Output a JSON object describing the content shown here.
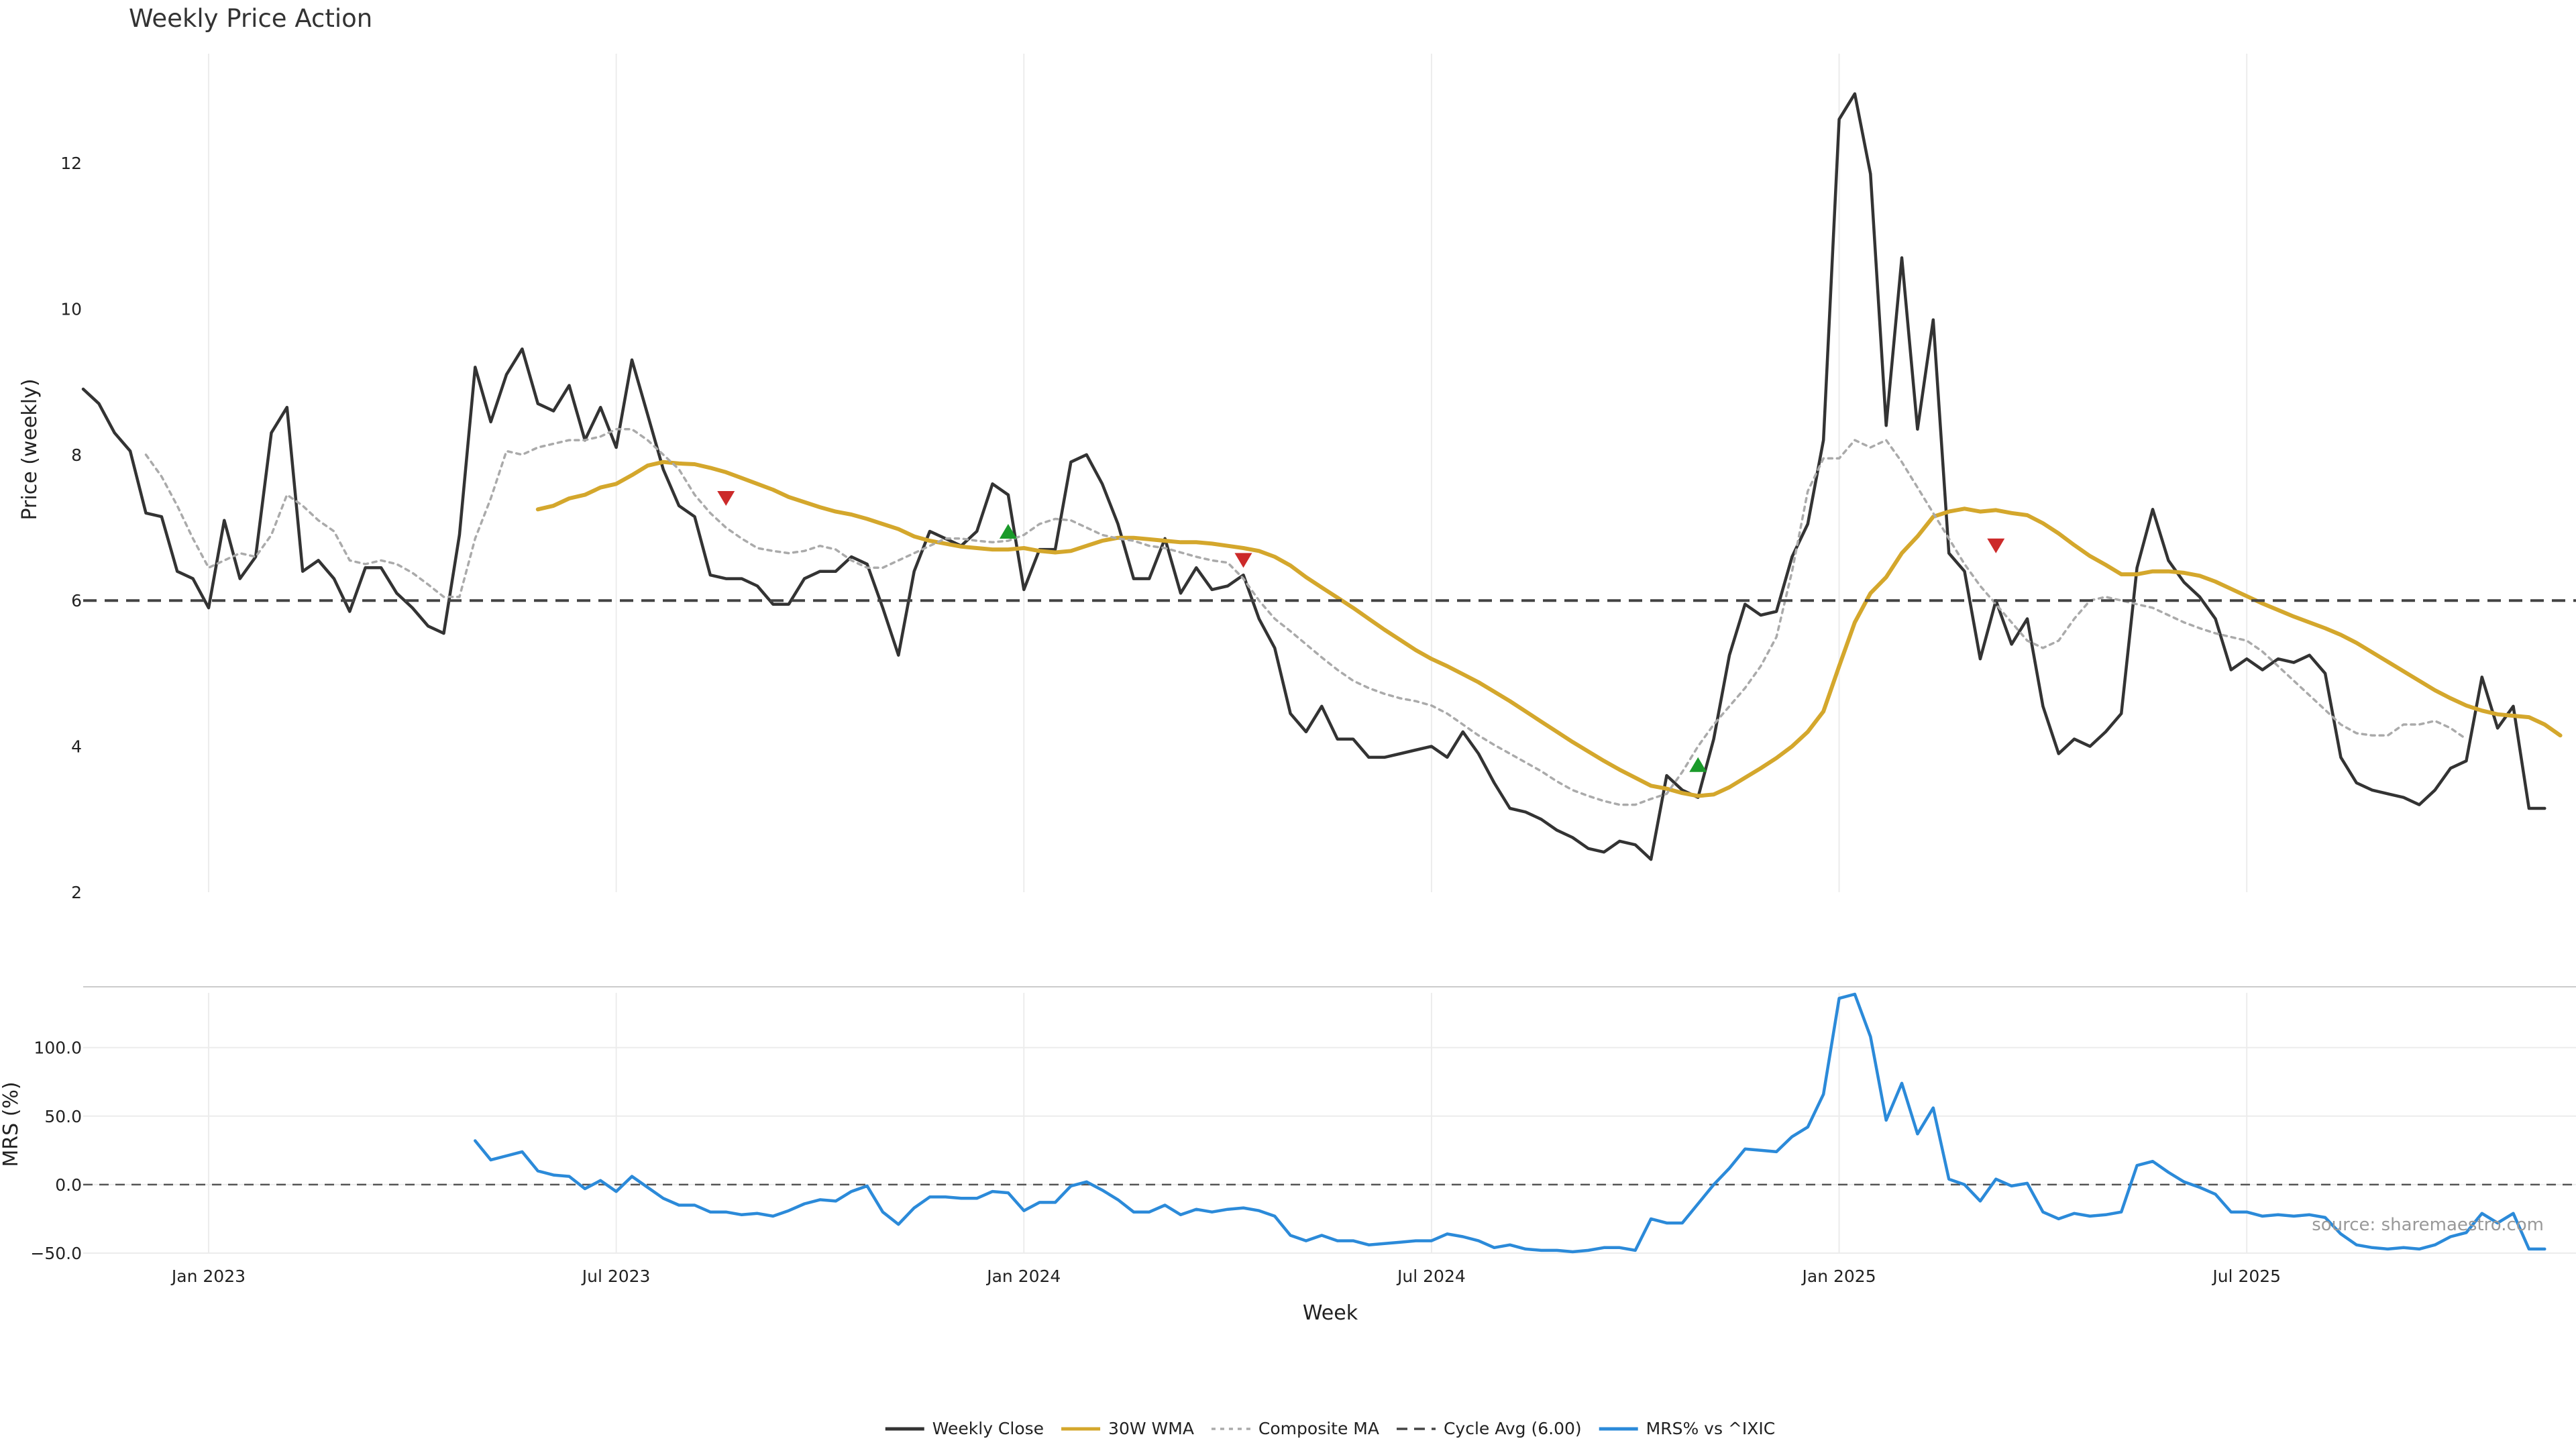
{
  "chart_data": {
    "type": "line",
    "title": "Weekly Price Action",
    "xlabel": "Week",
    "source": "source: sharemaestro.com",
    "x_ticks": [
      "Jan 2023",
      "Jul 2023",
      "Jan 2024",
      "Jul 2024",
      "Jan 2025",
      "Jul 2025"
    ],
    "x_tick_weeks": [
      7,
      33,
      59,
      85,
      111,
      137
    ],
    "x_range": [
      -1,
      158
    ],
    "grid": true,
    "legend_position": "bottom-center",
    "price_panel": {
      "ylabel": "Price (weekly)",
      "ylim": [
        2,
        13.5
      ],
      "yticks": [
        2,
        4,
        6,
        8,
        10,
        12
      ]
    },
    "mrs_panel": {
      "ylabel": "MRS (%)",
      "ylim": [
        -50,
        140
      ],
      "yticks": [
        -50,
        0,
        50,
        100
      ],
      "ytick_labels": [
        "−50.0",
        "0.0",
        "50.0",
        "100.0"
      ]
    },
    "series": [
      {
        "name": "Weekly Close",
        "panel": "price",
        "color": "#333333",
        "style": "solid",
        "start": -1,
        "values": [
          8.9,
          8.7,
          8.3,
          8.05,
          7.2,
          7.15,
          6.4,
          6.3,
          5.9,
          7.1,
          6.3,
          6.6,
          8.3,
          8.65,
          6.4,
          6.55,
          6.3,
          5.85,
          6.45,
          6.45,
          6.1,
          5.9,
          5.65,
          5.55,
          6.9,
          9.2,
          8.45,
          9.1,
          9.45,
          8.7,
          8.6,
          8.95,
          8.2,
          8.65,
          8.1,
          9.3,
          8.55,
          7.8,
          7.3,
          7.15,
          6.35,
          6.3,
          6.3,
          6.2,
          5.95,
          5.95,
          6.3,
          6.4,
          6.4,
          6.6,
          6.5,
          5.9,
          5.25,
          6.4,
          6.95,
          6.85,
          6.75,
          6.95,
          7.6,
          7.45,
          6.15,
          6.7,
          6.7,
          7.9,
          8.0,
          7.6,
          7.05,
          6.3,
          6.3,
          6.85,
          6.1,
          6.45,
          6.15,
          6.2,
          6.35,
          5.75,
          5.35,
          4.45,
          4.2,
          4.55,
          4.1,
          4.1,
          3.85,
          3.85,
          3.9,
          3.95,
          4.0,
          3.85,
          4.2,
          3.9,
          3.5,
          3.15,
          3.1,
          3.0,
          2.85,
          2.75,
          2.6,
          2.55,
          2.7,
          2.65,
          2.45,
          3.6,
          3.4,
          3.3,
          4.1,
          5.25,
          5.95,
          5.8,
          5.85,
          6.6,
          7.05,
          8.2,
          12.6,
          12.95,
          11.85,
          8.4,
          10.7,
          8.35,
          9.85,
          6.65,
          6.4,
          5.2,
          6.0,
          5.4,
          5.75,
          4.55,
          3.9,
          4.1,
          4.0,
          4.2,
          4.45,
          6.45,
          7.25,
          6.55,
          6.25,
          6.05,
          5.75,
          5.05,
          5.2,
          5.05,
          5.2,
          5.15,
          5.25,
          5.0,
          3.85,
          3.5,
          3.4,
          3.35,
          3.3,
          3.2,
          3.4,
          3.7,
          3.8,
          4.95,
          4.25,
          4.55,
          3.15,
          3.15
        ]
      },
      {
        "name": "30W WMA",
        "panel": "price",
        "color": "#d4a72c",
        "style": "solid",
        "start": 28,
        "values": [
          7.25,
          7.3,
          7.4,
          7.45,
          7.55,
          7.6,
          7.72,
          7.85,
          7.9,
          7.88,
          7.87,
          7.82,
          7.76,
          7.68,
          7.6,
          7.52,
          7.42,
          7.35,
          7.28,
          7.22,
          7.18,
          7.12,
          7.05,
          6.98,
          6.88,
          6.82,
          6.78,
          6.74,
          6.72,
          6.7,
          6.7,
          6.72,
          6.68,
          6.66,
          6.68,
          6.75,
          6.82,
          6.86,
          6.86,
          6.84,
          6.82,
          6.8,
          6.8,
          6.78,
          6.75,
          6.72,
          6.68,
          6.6,
          6.48,
          6.32,
          6.18,
          6.04,
          5.9,
          5.75,
          5.6,
          5.46,
          5.32,
          5.2,
          5.1,
          4.99,
          4.88,
          4.75,
          4.62,
          4.48,
          4.34,
          4.2,
          4.06,
          3.93,
          3.8,
          3.68,
          3.57,
          3.46,
          3.42,
          3.36,
          3.32,
          3.34,
          3.44,
          3.57,
          3.7,
          3.84,
          4.0,
          4.2,
          4.48,
          5.1,
          5.7,
          6.1,
          6.32,
          6.65,
          6.88,
          7.15,
          7.22,
          7.26,
          7.22,
          7.24,
          7.2,
          7.17,
          7.06,
          6.92,
          6.76,
          6.61,
          6.49,
          6.36,
          6.36,
          6.4,
          6.4,
          6.38,
          6.34,
          6.26,
          6.16,
          6.06,
          5.96,
          5.87,
          5.78,
          5.7,
          5.62,
          5.53,
          5.42,
          5.29,
          5.16,
          5.03,
          4.9,
          4.77,
          4.66,
          4.56,
          4.49,
          4.44,
          4.42,
          4.4,
          4.3,
          4.15
        ]
      },
      {
        "name": "Composite MA",
        "panel": "price",
        "color": "#aaaaaa",
        "style": "dotted",
        "start": 3,
        "values": [
          8.0,
          7.7,
          7.3,
          6.85,
          6.45,
          6.55,
          6.65,
          6.6,
          6.9,
          7.45,
          7.3,
          7.1,
          6.95,
          6.55,
          6.5,
          6.55,
          6.5,
          6.38,
          6.22,
          6.05,
          6.05,
          6.85,
          7.4,
          8.05,
          8.0,
          8.1,
          8.15,
          8.2,
          8.2,
          8.25,
          8.35,
          8.35,
          8.2,
          8.0,
          7.8,
          7.45,
          7.2,
          7.0,
          6.85,
          6.72,
          6.68,
          6.65,
          6.68,
          6.75,
          6.7,
          6.55,
          6.45,
          6.45,
          6.55,
          6.65,
          6.75,
          6.85,
          6.85,
          6.82,
          6.8,
          6.82,
          6.9,
          7.05,
          7.12,
          7.1,
          7.0,
          6.9,
          6.85,
          6.82,
          6.75,
          6.72,
          6.66,
          6.6,
          6.55,
          6.52,
          6.3,
          6.0,
          5.75,
          5.58,
          5.4,
          5.22,
          5.05,
          4.9,
          4.8,
          4.72,
          4.66,
          4.62,
          4.56,
          4.45,
          4.3,
          4.15,
          4.02,
          3.9,
          3.78,
          3.66,
          3.52,
          3.4,
          3.32,
          3.25,
          3.2,
          3.2,
          3.28,
          3.35,
          3.65,
          4.0,
          4.3,
          4.55,
          4.8,
          5.1,
          5.5,
          6.4,
          7.5,
          7.95,
          7.95,
          8.2,
          8.1,
          8.2,
          7.9,
          7.55,
          7.2,
          6.85,
          6.5,
          6.2,
          5.95,
          5.7,
          5.45,
          5.35,
          5.45,
          5.75,
          6.0,
          6.05,
          6.0,
          5.95,
          5.9,
          5.8,
          5.7,
          5.62,
          5.55,
          5.5,
          5.45,
          5.3,
          5.1,
          4.9,
          4.7,
          4.5,
          4.3,
          4.18,
          4.15,
          4.15,
          4.3,
          4.3,
          4.35,
          4.25,
          4.1
        ]
      },
      {
        "name": "Cycle Avg (6.00)",
        "panel": "price",
        "color": "#444444",
        "style": "dashed",
        "values": [
          6.0
        ]
      },
      {
        "name": "MRS% vs ^IXIC",
        "panel": "mrs",
        "color": "#2b8ad9",
        "style": "solid",
        "start": 24,
        "values": [
          32,
          18,
          21,
          24,
          10,
          7,
          6,
          -3,
          3,
          -5,
          6,
          -2,
          -10,
          -15,
          -15,
          -20,
          -20,
          -22,
          -21,
          -23,
          -19,
          -14,
          -11,
          -12,
          -5,
          -1,
          -20,
          -29,
          -17,
          -9,
          -9,
          -10,
          -10,
          -5,
          -6,
          -19,
          -13,
          -13,
          -1,
          2,
          -4,
          -11,
          -20,
          -20,
          -15,
          -22,
          -18,
          -20,
          -18,
          -17,
          -19,
          -23,
          -37,
          -41,
          -37,
          -41,
          -41,
          -44,
          -43,
          -42,
          -41,
          -41,
          -36,
          -38,
          -41,
          -46,
          -44,
          -47,
          -48,
          -48,
          -49,
          -48,
          -46,
          -46,
          -48,
          -25,
          -28,
          -28,
          -14,
          0,
          12,
          26,
          25,
          24,
          35,
          42,
          66,
          136,
          139,
          108,
          47,
          74,
          37,
          56,
          4,
          0,
          -12,
          4,
          -1,
          1,
          -20,
          -25,
          -21,
          -23,
          -22,
          -20,
          14,
          17,
          9,
          2,
          -2,
          -7,
          -20,
          -20,
          -23,
          -22,
          -23,
          -22,
          -24,
          -36,
          -44,
          -46,
          -47,
          -46,
          -47,
          -44,
          -38,
          -35,
          -21,
          -28,
          -21,
          -47,
          -47
        ]
      }
    ],
    "signals": [
      {
        "type": "sell",
        "week": 40,
        "y": 7.4,
        "color": "#cc2a2a"
      },
      {
        "type": "buy",
        "week": 58,
        "y": 6.95,
        "color": "#1a9a2a"
      },
      {
        "type": "sell",
        "week": 73,
        "y": 6.55,
        "color": "#cc2a2a"
      },
      {
        "type": "buy",
        "week": 102,
        "y": 3.75,
        "color": "#1a9a2a"
      },
      {
        "type": "sell",
        "week": 121,
        "y": 6.75,
        "color": "#cc2a2a"
      }
    ]
  }
}
